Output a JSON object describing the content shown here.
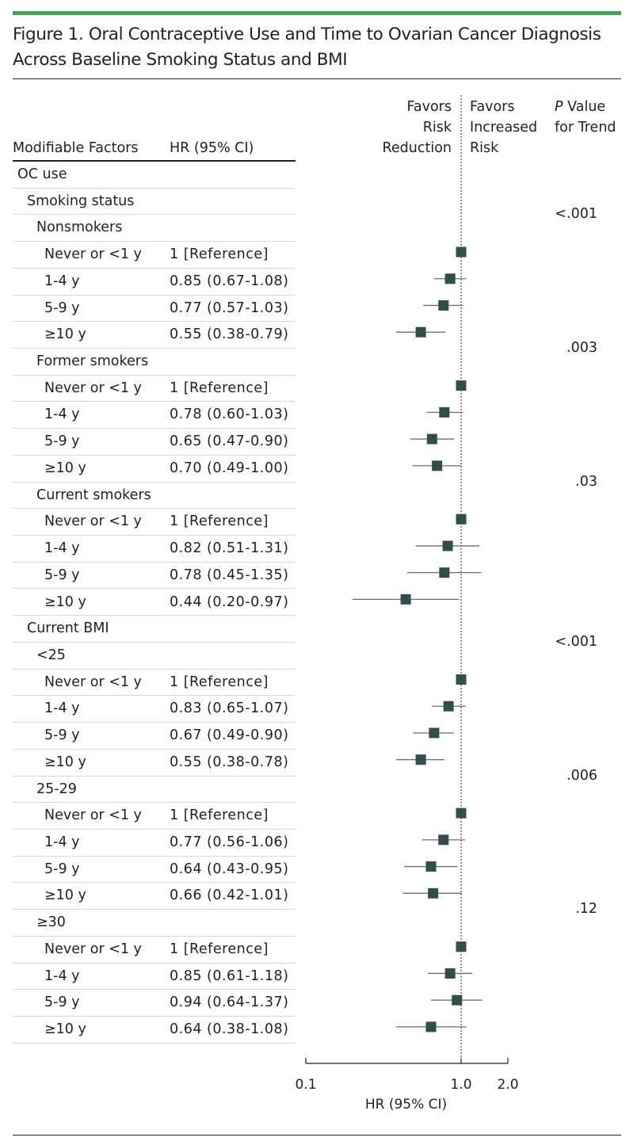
{
  "figure": {
    "title": "Figure 1. Oral Contraceptive Use and Time to Ovarian Cancer Diagnosis Across Baseline Smoking Status and BMI"
  },
  "headers": {
    "factors": "Modifiable Factors",
    "hr": "HR (95% CI)",
    "favors_left": "Favors\nRisk\nReduction",
    "favors_right": "Favors\nIncreased\nRisk",
    "pvalue_italic": "P",
    "pvalue_rest": " Value\nfor Trend"
  },
  "colors": {
    "marker": "#2f4f4f",
    "accent_rule": "#4aa05a",
    "text": "#231f20"
  },
  "chart_data": {
    "type": "forest",
    "xlabel": "HR (95% CI)",
    "xscale": "log",
    "xlim": [
      0.1,
      2.0
    ],
    "xticks": [
      0.1,
      1.0,
      2.0
    ],
    "xtick_labels": [
      "0.1",
      "1.0",
      "2.0"
    ],
    "reference_line": 1.0,
    "rows": [
      {
        "label": "OC use",
        "indent": 0
      },
      {
        "label": "Smoking status",
        "indent": 1
      },
      {
        "label": "Nonsmokers",
        "indent": 2,
        "p_trend": "<.001"
      },
      {
        "label": "Never or <1 y",
        "indent": 3,
        "hr_text": "1 [Reference]",
        "hr": 1.0
      },
      {
        "label": "1-4 y",
        "indent": 3,
        "hr_text": "0.85 (0.67-1.08)",
        "hr": 0.85,
        "lo": 0.67,
        "hi": 1.08
      },
      {
        "label": "5-9 y",
        "indent": 3,
        "hr_text": "0.77 (0.57-1.03)",
        "hr": 0.77,
        "lo": 0.57,
        "hi": 1.03
      },
      {
        "label": "≥10 y",
        "indent": 3,
        "hr_text": "0.55 (0.38-0.79)",
        "hr": 0.55,
        "lo": 0.38,
        "hi": 0.79
      },
      {
        "label": "Former smokers",
        "indent": 2,
        "p_trend": ".003"
      },
      {
        "label": "Never or <1 y",
        "indent": 3,
        "hr_text": "1 [Reference]",
        "hr": 1.0
      },
      {
        "label": "1-4 y",
        "indent": 3,
        "hr_text": "0.78 (0.60-1.03)",
        "hr": 0.78,
        "lo": 0.6,
        "hi": 1.03
      },
      {
        "label": "5-9 y",
        "indent": 3,
        "hr_text": "0.65 (0.47-0.90)",
        "hr": 0.65,
        "lo": 0.47,
        "hi": 0.9
      },
      {
        "label": "≥10 y",
        "indent": 3,
        "hr_text": "0.70 (0.49-1.00)",
        "hr": 0.7,
        "lo": 0.49,
        "hi": 1.0
      },
      {
        "label": "Current smokers",
        "indent": 2,
        "p_trend": ".03"
      },
      {
        "label": "Never or <1 y",
        "indent": 3,
        "hr_text": "1 [Reference]",
        "hr": 1.0
      },
      {
        "label": "1-4 y",
        "indent": 3,
        "hr_text": "0.82 (0.51-1.31)",
        "hr": 0.82,
        "lo": 0.51,
        "hi": 1.31
      },
      {
        "label": "5-9 y",
        "indent": 3,
        "hr_text": "0.78 (0.45-1.35)",
        "hr": 0.78,
        "lo": 0.45,
        "hi": 1.35
      },
      {
        "label": "≥10 y",
        "indent": 3,
        "hr_text": "0.44 (0.20-0.97)",
        "hr": 0.44,
        "lo": 0.2,
        "hi": 0.97
      },
      {
        "label": "Current BMI",
        "indent": 1
      },
      {
        "label": "<25",
        "indent": 2,
        "p_trend": "<.001"
      },
      {
        "label": "Never or <1 y",
        "indent": 3,
        "hr_text": "1 [Reference]",
        "hr": 1.0
      },
      {
        "label": "1-4 y",
        "indent": 3,
        "hr_text": "0.83 (0.65-1.07)",
        "hr": 0.83,
        "lo": 0.65,
        "hi": 1.07
      },
      {
        "label": "5-9 y",
        "indent": 3,
        "hr_text": "0.67 (0.49-0.90)",
        "hr": 0.67,
        "lo": 0.49,
        "hi": 0.9
      },
      {
        "label": "≥10 y",
        "indent": 3,
        "hr_text": "0.55 (0.38-0.78)",
        "hr": 0.55,
        "lo": 0.38,
        "hi": 0.78
      },
      {
        "label": "25-29",
        "indent": 2,
        "p_trend": ".006"
      },
      {
        "label": "Never or <1 y",
        "indent": 3,
        "hr_text": "1 [Reference]",
        "hr": 1.0
      },
      {
        "label": "1-4 y",
        "indent": 3,
        "hr_text": "0.77 (0.56-1.06)",
        "hr": 0.77,
        "lo": 0.56,
        "hi": 1.06
      },
      {
        "label": "5-9 y",
        "indent": 3,
        "hr_text": "0.64 (0.43-0.95)",
        "hr": 0.64,
        "lo": 0.43,
        "hi": 0.95
      },
      {
        "label": "≥10 y",
        "indent": 3,
        "hr_text": "0.66 (0.42-1.01)",
        "hr": 0.66,
        "lo": 0.42,
        "hi": 1.01
      },
      {
        "label": "≥30",
        "indent": 2,
        "p_trend": ".12"
      },
      {
        "label": "Never or <1 y",
        "indent": 3,
        "hr_text": "1 [Reference]",
        "hr": 1.0
      },
      {
        "label": "1-4 y",
        "indent": 3,
        "hr_text": "0.85 (0.61-1.18)",
        "hr": 0.85,
        "lo": 0.61,
        "hi": 1.18
      },
      {
        "label": "5-9 y",
        "indent": 3,
        "hr_text": "0.94 (0.64-1.37)",
        "hr": 0.94,
        "lo": 0.64,
        "hi": 1.37
      },
      {
        "label": "≥10 y",
        "indent": 3,
        "hr_text": "0.64 (0.38-1.08)",
        "hr": 0.64,
        "lo": 0.38,
        "hi": 1.08
      }
    ]
  }
}
